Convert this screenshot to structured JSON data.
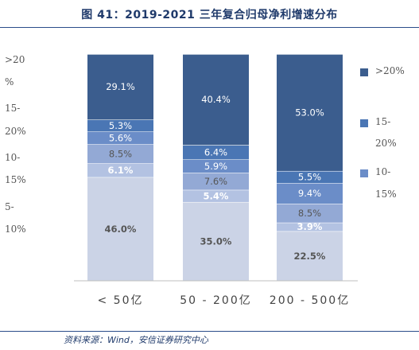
{
  "title": "图 41：2019-2021 三年复合归母净利增速分布",
  "source": "资料来源：Wind，安信证券研究中心",
  "left_cut_labels": [
    [
      ">20",
      "%"
    ],
    [
      "15-",
      "20%"
    ],
    [
      "10-",
      "15%"
    ],
    [
      "5-",
      "10%"
    ]
  ],
  "colors": {
    ">20%": "#3b5d8e",
    "15-20%": "#4a76b4",
    "10-15%": "#6b8dc8",
    "5-10%": "#93a9d5",
    "0-5%": "#b3c2e2",
    "<0%": "#cbd3e6",
    "title": "#1f3a6b"
  },
  "chart_data": {
    "type": "bar",
    "stacked": true,
    "normalized": true,
    "categories": [
      "< 50亿",
      "50 - 200亿",
      "200 - 500亿"
    ],
    "series_order_bottom_to_top": [
      "<0%",
      "0-5%",
      "5-10%",
      "10-15%",
      "15-20%",
      ">20%"
    ],
    "series": [
      {
        "key": "<0%",
        "values": [
          46.0,
          35.0,
          22.5
        ],
        "labels": [
          "46.0%",
          "35.0%",
          "22.5%"
        ]
      },
      {
        "key": "0-5%",
        "values": [
          6.1,
          5.4,
          3.9
        ],
        "labels": [
          "6.1%",
          "5.4%",
          "3.9%"
        ]
      },
      {
        "key": "5-10%",
        "values": [
          8.5,
          7.6,
          8.5
        ],
        "labels": [
          "8.5%",
          "7.6%",
          "8.5%"
        ]
      },
      {
        "key": "10-15%",
        "values": [
          5.6,
          5.9,
          9.4
        ],
        "labels": [
          "5.6%",
          "5.9%",
          "9.4%"
        ]
      },
      {
        "key": "15-20%",
        "values": [
          5.3,
          6.4,
          5.5
        ],
        "labels": [
          "5.3%",
          "6.4%",
          "5.5%"
        ]
      },
      {
        "key": ">20%",
        "values": [
          29.1,
          40.4,
          53.0
        ],
        "labels": [
          "29.1%",
          "40.4%",
          "53.0%"
        ]
      }
    ],
    "legend": {
      "position": "right",
      "entries": [
        {
          "key": ">20%",
          "lines": [
            ">20%"
          ]
        },
        {
          "key": "15-20%",
          "lines": [
            "15-",
            "20%"
          ]
        },
        {
          "key": "10-15%",
          "lines": [
            "10-",
            "15%"
          ]
        }
      ]
    },
    "ylim": [
      0,
      100
    ]
  }
}
